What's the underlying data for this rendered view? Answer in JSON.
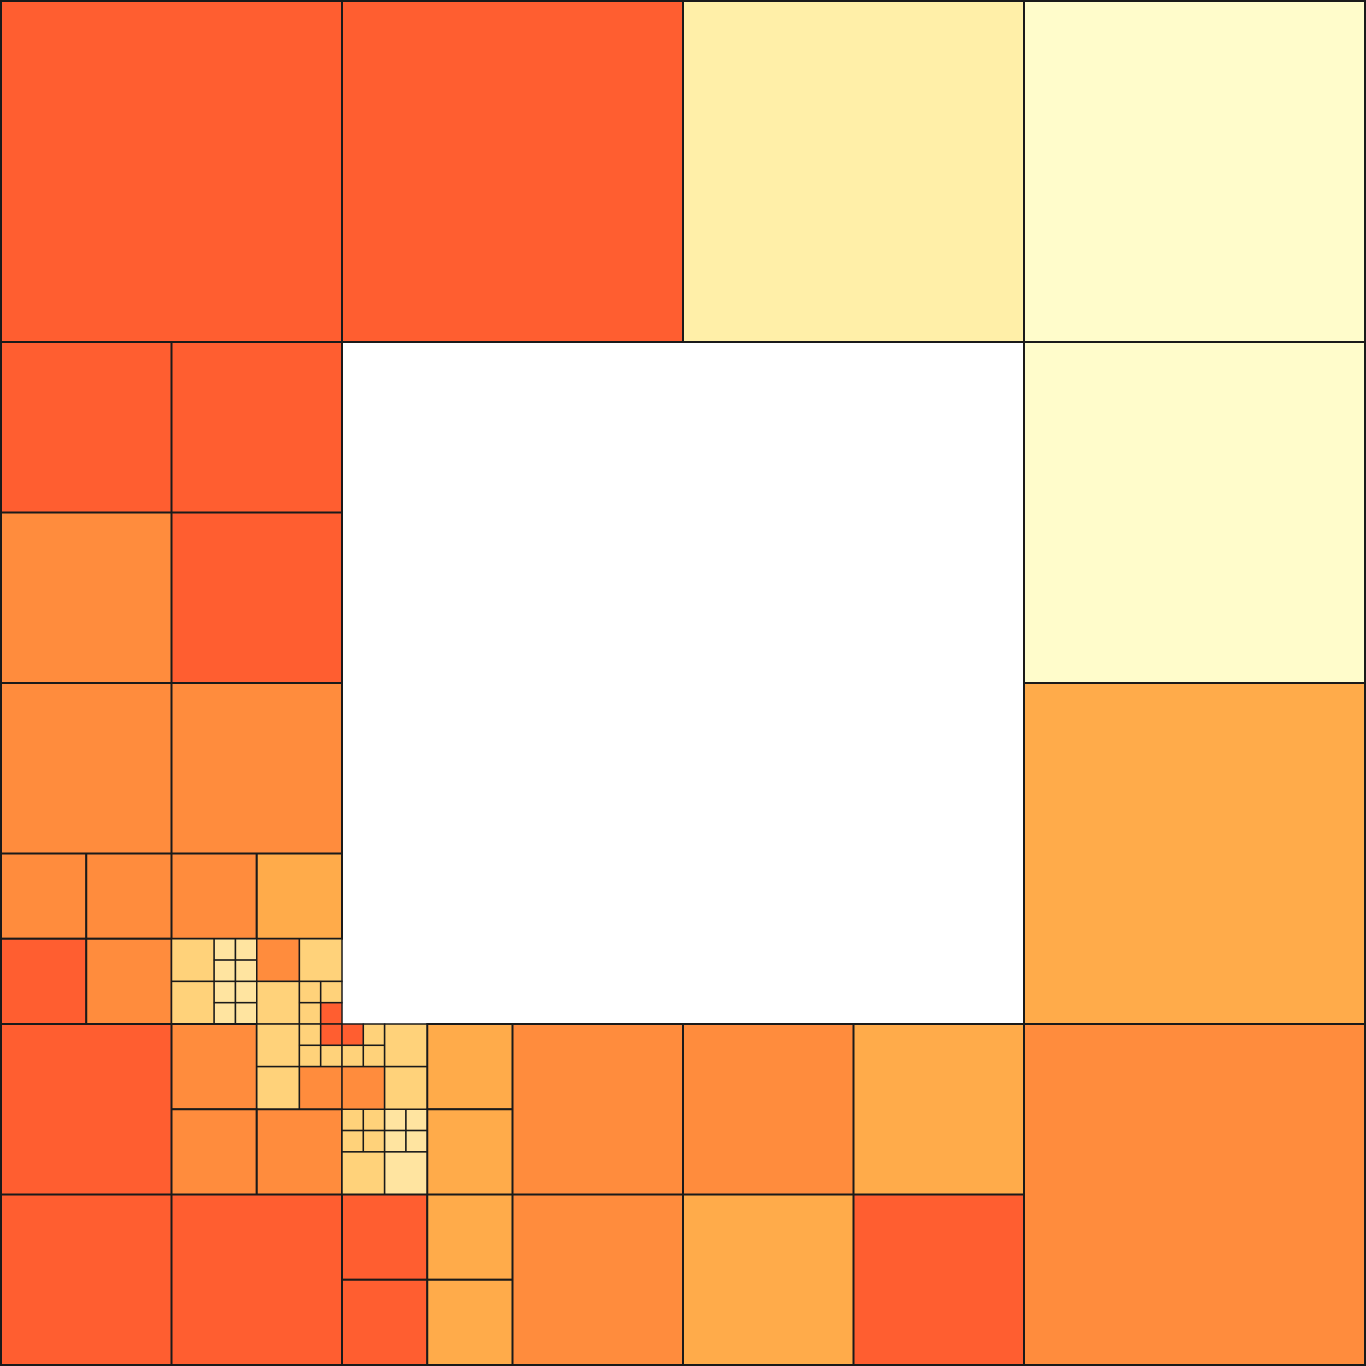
{
  "palette": {
    "red": "#FF5E30",
    "orange": "#FF8C3D",
    "amber": "#FFAB4A",
    "yellow": "#FFD27A",
    "pale": "#FFE4A0",
    "cream": "#FFEFA8",
    "ivory": "#FFFCCB",
    "empty": "#FFFFFF",
    "stroke": "#1A1A1A"
  },
  "grid": {
    "extent": 16,
    "empty_region": [
      4,
      4,
      8,
      8
    ],
    "cells": [
      [
        0,
        0,
        4,
        "red"
      ],
      [
        4,
        0,
        4,
        "red"
      ],
      [
        8,
        0,
        4,
        "cream"
      ],
      [
        12,
        0,
        4,
        "ivory"
      ],
      [
        12,
        4,
        4,
        "ivory"
      ],
      [
        12,
        8,
        4,
        "amber"
      ],
      [
        12,
        12,
        4,
        "orange"
      ],
      [
        0,
        4,
        2,
        "red"
      ],
      [
        2,
        4,
        2,
        "red"
      ],
      [
        0,
        6,
        2,
        "orange"
      ],
      [
        2,
        6,
        2,
        "red"
      ],
      [
        0,
        8,
        2,
        "orange"
      ],
      [
        2,
        8,
        2,
        "orange"
      ],
      [
        0,
        10,
        1,
        "orange"
      ],
      [
        1,
        10,
        1,
        "orange"
      ],
      [
        2,
        10,
        1,
        "orange"
      ],
      [
        3,
        10,
        1,
        "amber"
      ],
      [
        0,
        11,
        1,
        "red"
      ],
      [
        1,
        11,
        1,
        "orange"
      ],
      [
        2,
        11,
        0.5,
        "yellow"
      ],
      [
        2.5,
        11,
        0.25,
        "pale"
      ],
      [
        2.75,
        11,
        0.25,
        "pale"
      ],
      [
        2.5,
        11.25,
        0.25,
        "pale"
      ],
      [
        2.75,
        11.25,
        0.25,
        "pale"
      ],
      [
        2,
        11.5,
        0.5,
        "yellow"
      ],
      [
        2.5,
        11.5,
        0.25,
        "pale"
      ],
      [
        2.75,
        11.5,
        0.25,
        "pale"
      ],
      [
        2.5,
        11.75,
        0.25,
        "pale"
      ],
      [
        2.75,
        11.75,
        0.25,
        "pale"
      ],
      [
        3,
        11,
        0.5,
        "orange"
      ],
      [
        3.5,
        11,
        0.5,
        "yellow"
      ],
      [
        3,
        11.5,
        0.5,
        "yellow"
      ],
      [
        3.5,
        11.5,
        0.25,
        "yellow"
      ],
      [
        3.75,
        11.5,
        0.25,
        "yellow"
      ],
      [
        3.5,
        11.75,
        0.25,
        "yellow"
      ],
      [
        3.75,
        11.75,
        0.25,
        "red"
      ],
      [
        0,
        12,
        2,
        "red"
      ],
      [
        2,
        12,
        1,
        "orange"
      ],
      [
        3,
        12,
        0.5,
        "yellow"
      ],
      [
        3.5,
        12,
        0.25,
        "yellow"
      ],
      [
        3.75,
        12,
        0.25,
        "red"
      ],
      [
        3.5,
        12.25,
        0.25,
        "yellow"
      ],
      [
        3.75,
        12.25,
        0.25,
        "yellow"
      ],
      [
        3,
        12.5,
        0.5,
        "yellow"
      ],
      [
        3.5,
        12.5,
        0.5,
        "orange"
      ],
      [
        4,
        12,
        0.25,
        "red"
      ],
      [
        4.25,
        12,
        0.25,
        "yellow"
      ],
      [
        4,
        12.25,
        0.25,
        "yellow"
      ],
      [
        4.25,
        12.25,
        0.25,
        "yellow"
      ],
      [
        4.5,
        12,
        0.5,
        "yellow"
      ],
      [
        4,
        12.5,
        0.5,
        "orange"
      ],
      [
        4.5,
        12.5,
        0.5,
        "yellow"
      ],
      [
        5,
        12,
        1,
        "amber"
      ],
      [
        6,
        12,
        2,
        "orange"
      ],
      [
        8,
        12,
        2,
        "orange"
      ],
      [
        10,
        12,
        2,
        "amber"
      ],
      [
        2,
        13,
        1,
        "orange"
      ],
      [
        3,
        13,
        1,
        "orange"
      ],
      [
        4,
        13,
        0.25,
        "yellow"
      ],
      [
        4.25,
        13,
        0.25,
        "yellow"
      ],
      [
        4,
        13.25,
        0.25,
        "yellow"
      ],
      [
        4.25,
        13.25,
        0.25,
        "yellow"
      ],
      [
        4.5,
        13,
        0.25,
        "pale"
      ],
      [
        4.75,
        13,
        0.25,
        "pale"
      ],
      [
        4.5,
        13.25,
        0.25,
        "pale"
      ],
      [
        4.75,
        13.25,
        0.25,
        "pale"
      ],
      [
        4,
        13.5,
        0.5,
        "yellow"
      ],
      [
        4.5,
        13.5,
        0.5,
        "pale"
      ],
      [
        5,
        13,
        1,
        "amber"
      ],
      [
        0,
        14,
        2,
        "red"
      ],
      [
        2,
        14,
        2,
        "red"
      ],
      [
        4,
        14,
        1,
        "red"
      ],
      [
        5,
        14,
        1,
        "amber"
      ],
      [
        4,
        15,
        1,
        "red"
      ],
      [
        5,
        15,
        1,
        "amber"
      ],
      [
        6,
        14,
        2,
        "orange"
      ],
      [
        8,
        14,
        2,
        "amber"
      ],
      [
        10,
        14,
        2,
        "red"
      ]
    ]
  }
}
